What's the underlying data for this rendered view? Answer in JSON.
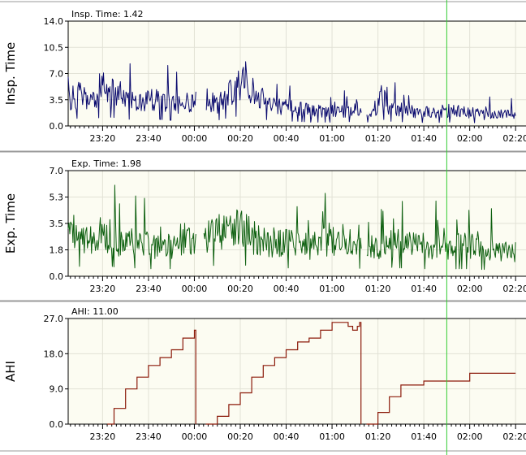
{
  "colors": {
    "background": "#ffffff",
    "plot_area": "#fcfcf2",
    "grid": "#e2e2d6",
    "panel_border": "#9a9a9a",
    "cursor": "#33cc33",
    "insp_series": "#0a0a6e",
    "exp_series": "#0e6010",
    "ahi_series": "#8b1a0a"
  },
  "x_axis": {
    "tick_labels": [
      "23:20",
      "23:40",
      "00:00",
      "00:20",
      "00:40",
      "01:00",
      "01:20",
      "01:40",
      "02:00",
      "02:20"
    ],
    "cursor_time": "01:50"
  },
  "chart_data": [
    {
      "type": "line",
      "ylabel": "Insp. Time",
      "readout_label": "Insp. Time:",
      "readout_value": "1.42",
      "yticks": [
        "0.0",
        "3.5",
        "7.0",
        "10.5",
        "14.0"
      ],
      "ylim": [
        0,
        14
      ],
      "x_unit": "minutes from 23:00",
      "x": [
        5,
        10,
        15,
        20,
        25,
        30,
        35,
        40,
        45,
        50,
        55,
        60,
        65,
        70,
        75,
        80,
        82,
        85,
        90,
        95,
        100,
        105,
        110,
        115,
        120,
        125,
        130,
        135,
        140,
        141,
        145,
        150,
        155,
        160,
        165,
        170,
        175,
        180,
        185,
        190,
        195,
        200
      ],
      "y": [
        3.5,
        4.2,
        3.0,
        5.0,
        4.5,
        3.8,
        3.0,
        3.5,
        3.5,
        3.0,
        2.8,
        3.5,
        3.5,
        3.0,
        4.5,
        5.5,
        7.5,
        4.0,
        3.5,
        3.0,
        2.5,
        2.5,
        2.0,
        2.0,
        2.0,
        2.0,
        2.5,
        2.0,
        2.5,
        4.0,
        2.5,
        2.2,
        2.0,
        1.8,
        1.8,
        2.0,
        2.0,
        1.8,
        1.5,
        1.5,
        1.5,
        1.4
      ]
    },
    {
      "type": "line",
      "ylabel": "Exp. Time",
      "readout_label": "Exp. Time:",
      "readout_value": "1.98",
      "yticks": [
        "0.0",
        "1.8",
        "3.5",
        "5.3",
        "7.0"
      ],
      "ylim": [
        0,
        7
      ],
      "x_unit": "minutes from 23:00",
      "x": [
        5,
        10,
        15,
        20,
        25,
        30,
        35,
        40,
        45,
        50,
        55,
        60,
        65,
        70,
        75,
        80,
        85,
        90,
        95,
        100,
        105,
        110,
        115,
        120,
        125,
        130,
        135,
        140,
        145,
        150,
        155,
        160,
        165,
        170,
        175,
        180,
        185,
        190,
        195,
        200
      ],
      "y": [
        3.0,
        2.6,
        2.4,
        3.0,
        2.5,
        2.2,
        2.2,
        2.0,
        2.0,
        2.0,
        2.5,
        2.2,
        2.5,
        3.0,
        3.0,
        3.2,
        2.6,
        2.4,
        2.2,
        2.2,
        2.2,
        2.0,
        2.2,
        2.3,
        2.5,
        2.2,
        2.0,
        2.0,
        2.4,
        2.2,
        2.0,
        2.0,
        2.0,
        1.8,
        2.0,
        2.0,
        1.8,
        1.8,
        1.6,
        1.6
      ]
    },
    {
      "type": "line",
      "ylabel": "AHI",
      "readout_label": "AHI:",
      "readout_value": "11.00",
      "yticks": [
        "0.0",
        "9.0",
        "18.0",
        "27.0"
      ],
      "ylim": [
        0,
        27
      ],
      "x_unit": "minutes from 23:00",
      "segments": [
        {
          "x": [
            22,
            25,
            30,
            35,
            40,
            45,
            50,
            55,
            60,
            60.6
          ],
          "y": [
            0,
            4,
            9,
            12,
            15,
            17,
            19,
            22,
            24,
            0
          ]
        },
        {
          "x": [
            65,
            70,
            75,
            80,
            85,
            90,
            95,
            100,
            105,
            110,
            115,
            120,
            125,
            127,
            129,
            131,
            132,
            132.6
          ],
          "y": [
            0,
            2,
            5,
            8,
            12,
            15,
            17,
            19,
            21,
            22,
            24,
            26,
            26,
            25,
            24,
            25,
            26,
            0
          ]
        },
        {
          "x": [
            135,
            140,
            145,
            150,
            160,
            170,
            175,
            180,
            190,
            200
          ],
          "y": [
            0,
            3,
            7,
            10,
            11,
            11,
            11,
            13,
            13,
            13
          ]
        }
      ]
    }
  ]
}
